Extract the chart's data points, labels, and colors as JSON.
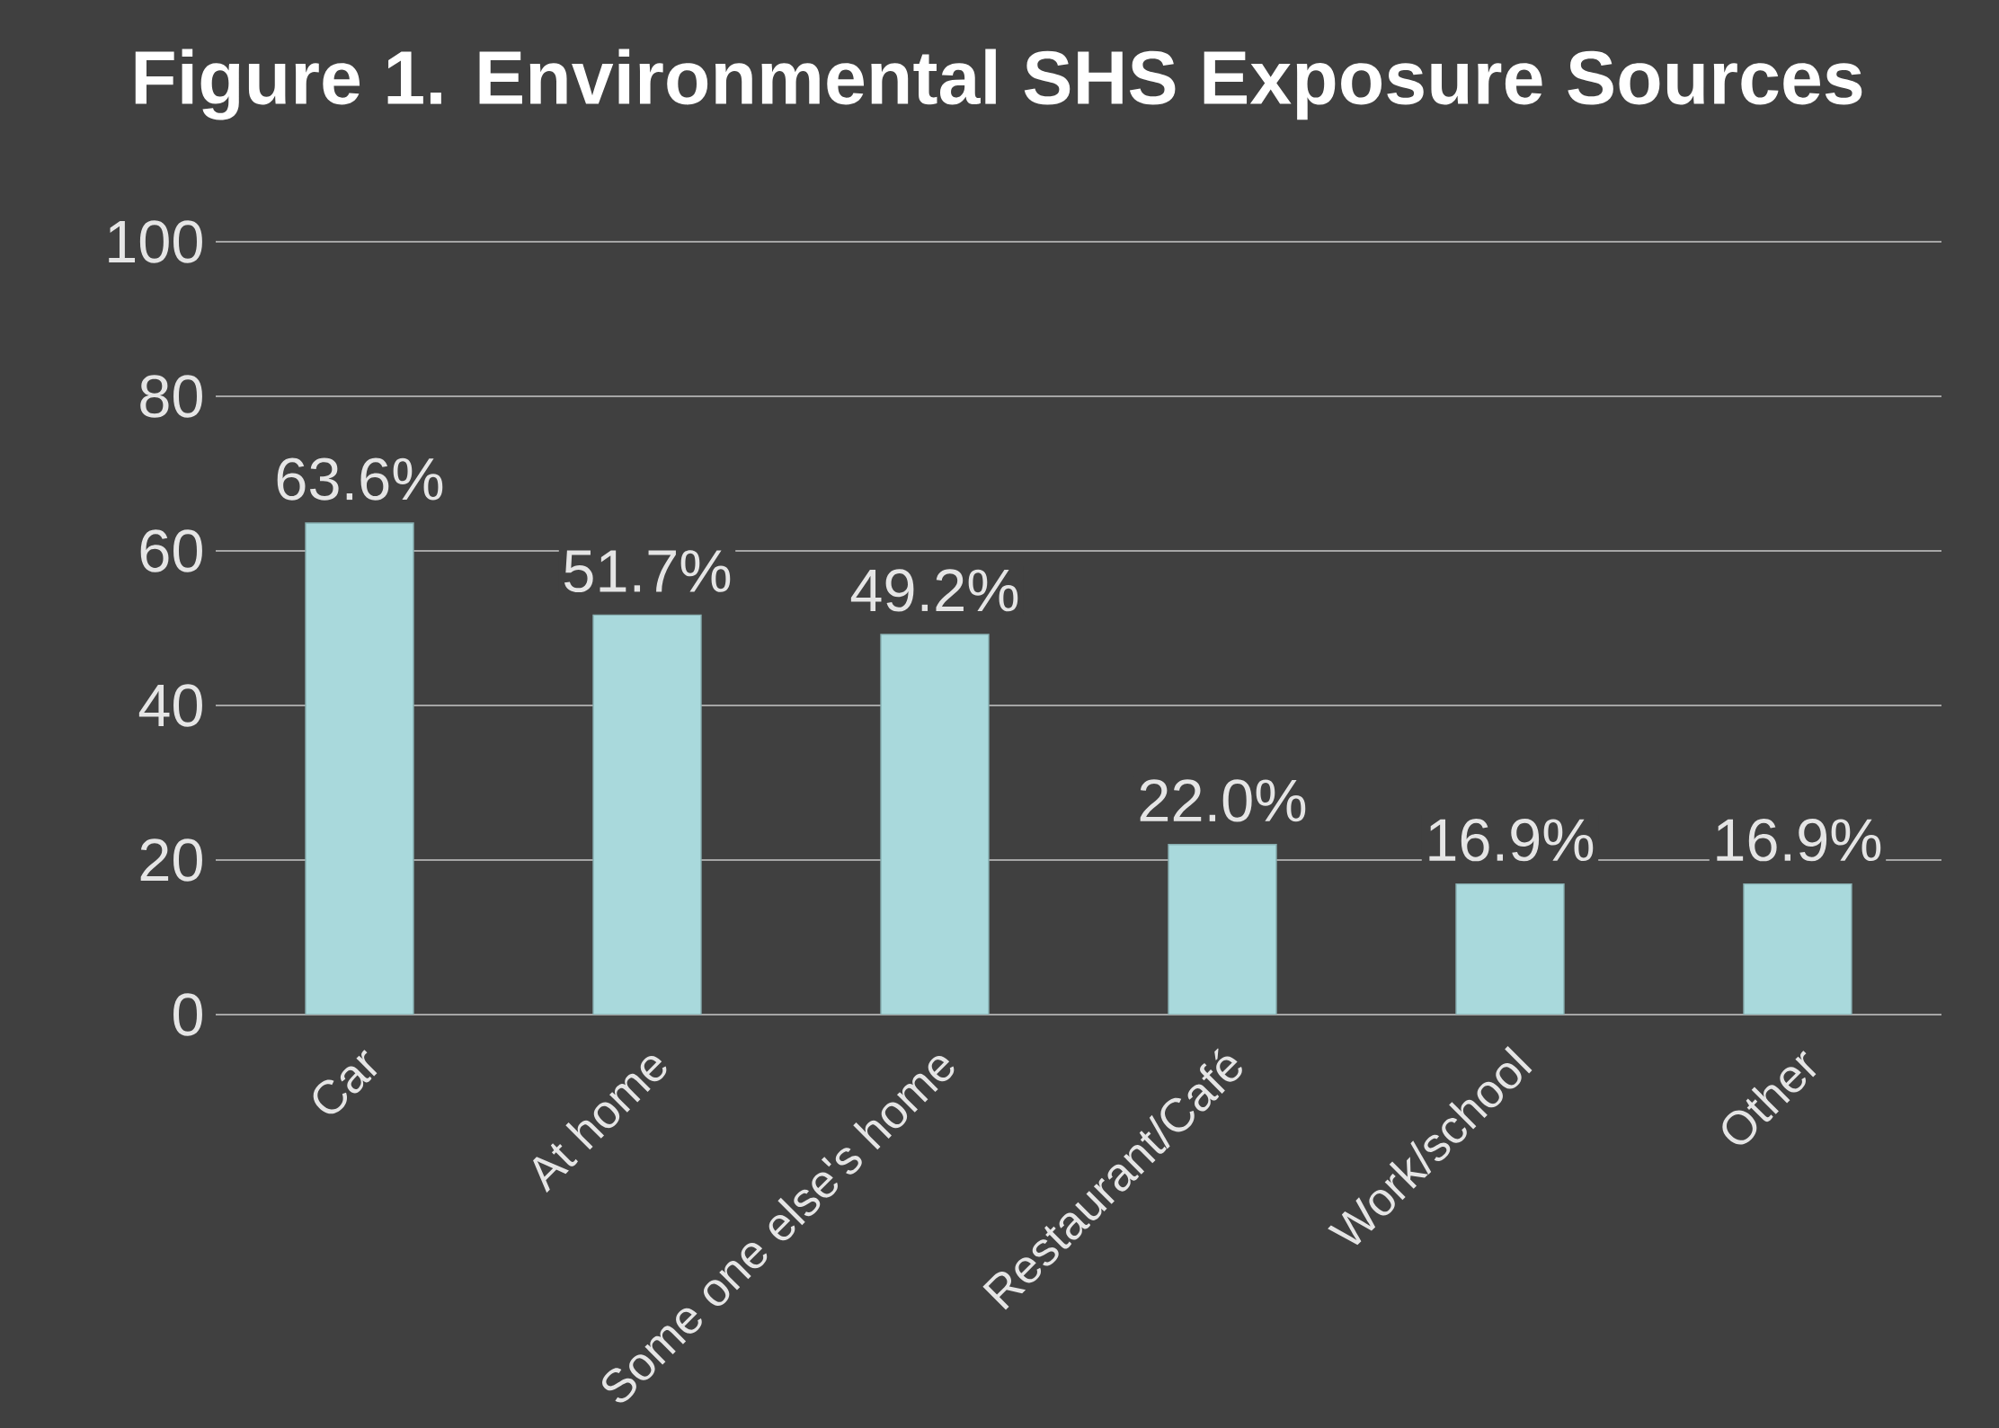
{
  "chart_data": {
    "type": "bar",
    "title": "Figure 1. Environmental SHS Exposure Sources",
    "categories": [
      "Car",
      "At home",
      "Some one else's home",
      "Restaurant/Café",
      "Work/school",
      "Other"
    ],
    "values": [
      63.6,
      51.7,
      49.2,
      22.0,
      16.9,
      16.9
    ],
    "value_labels": [
      "63.6%",
      "51.7%",
      "49.2%",
      "22.0%",
      "16.9%",
      "16.9%"
    ],
    "color": "#a9d9dc",
    "ylim": [
      0,
      100
    ],
    "yticks": [
      0,
      20,
      40,
      60,
      80,
      100
    ],
    "grid": "y"
  }
}
